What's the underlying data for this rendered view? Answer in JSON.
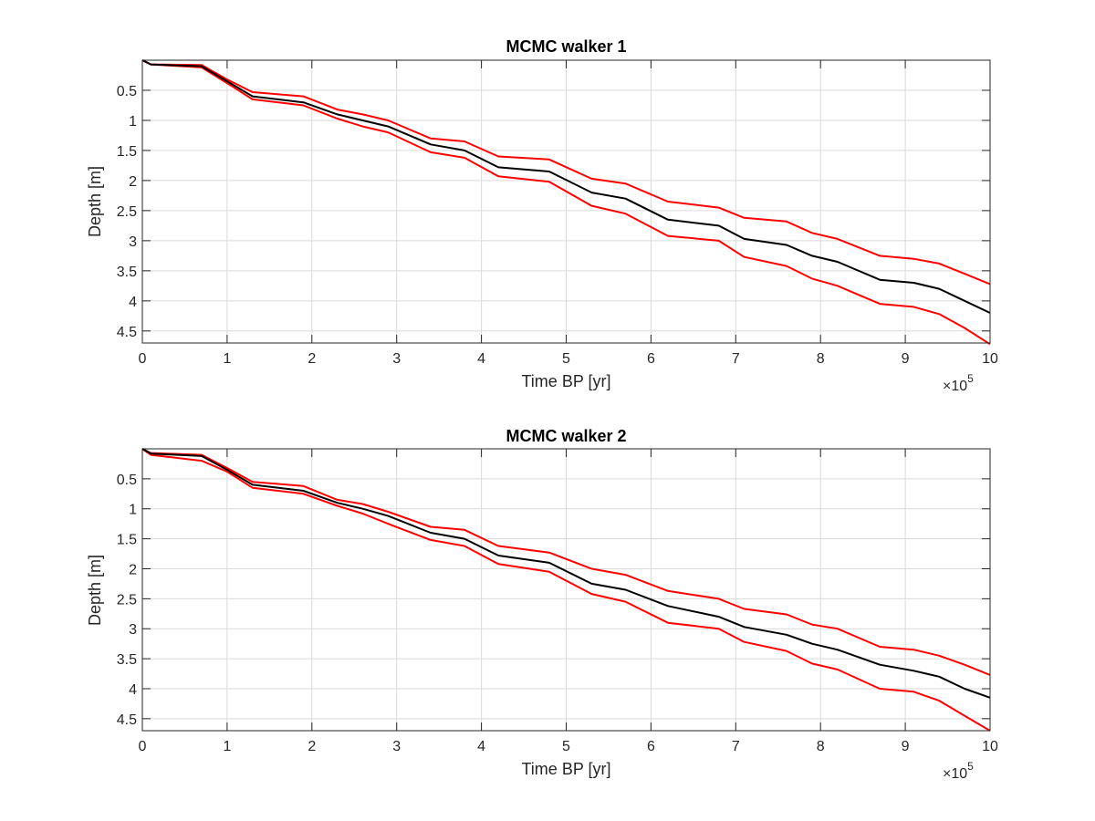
{
  "chart_data": [
    {
      "type": "line",
      "title": "MCMC walker 1",
      "xlabel": "Time BP [yr]",
      "ylabel": "Depth [m]",
      "x_multiplier": "×10",
      "x_multiplier_exp": "5",
      "xlim": [
        0,
        10
      ],
      "ylim": [
        0,
        4.7
      ],
      "y_reversed": true,
      "grid": true,
      "xticks": [
        "0",
        "1",
        "2",
        "3",
        "4",
        "5",
        "6",
        "7",
        "8",
        "9",
        "10"
      ],
      "yticks": [
        {
          "value": 0.5,
          "label": "0.5"
        },
        {
          "value": 1,
          "label": "1"
        },
        {
          "value": 1.5,
          "label": "1.5"
        },
        {
          "value": 2,
          "label": "2"
        },
        {
          "value": 2.5,
          "label": "2.5"
        },
        {
          "value": 3,
          "label": "3"
        },
        {
          "value": 3.5,
          "label": "3.5"
        },
        {
          "value": 4,
          "label": "4"
        },
        {
          "value": 4.5,
          "label": "4.5"
        }
      ],
      "series": [
        {
          "color": "#000000",
          "x": [
            0,
            0.1,
            0.7,
            1,
            1.3,
            1.9,
            2.3,
            2.6,
            2.9,
            3.4,
            3.8,
            4.2,
            4.8,
            5.3,
            5.7,
            6.2,
            6.8,
            7.1,
            7.6,
            7.9,
            8.2,
            8.7,
            9.1,
            9.4,
            9.7,
            10
          ],
          "y": [
            0,
            0.07,
            0.1,
            0.35,
            0.6,
            0.7,
            0.9,
            1.0,
            1.1,
            1.4,
            1.5,
            1.78,
            1.85,
            2.2,
            2.3,
            2.65,
            2.75,
            2.97,
            3.07,
            3.25,
            3.35,
            3.65,
            3.7,
            3.8,
            4.0,
            4.2
          ]
        },
        {
          "color": "#ff0000",
          "x": [
            0,
            0.1,
            0.7,
            1,
            1.3,
            1.9,
            2.3,
            2.6,
            2.9,
            3.4,
            3.8,
            4.2,
            4.8,
            5.3,
            5.7,
            6.2,
            6.8,
            7.1,
            7.6,
            7.9,
            8.2,
            8.7,
            9.1,
            9.4,
            9.7,
            10
          ],
          "y": [
            0,
            0.07,
            0.08,
            0.32,
            0.53,
            0.6,
            0.82,
            0.9,
            1.0,
            1.3,
            1.35,
            1.6,
            1.65,
            1.97,
            2.05,
            2.35,
            2.45,
            2.62,
            2.68,
            2.87,
            2.97,
            3.25,
            3.3,
            3.38,
            3.55,
            3.72
          ]
        },
        {
          "color": "#ff0000",
          "x": [
            0,
            0.1,
            0.7,
            1,
            1.3,
            1.9,
            2.3,
            2.6,
            2.9,
            3.4,
            3.8,
            4.2,
            4.8,
            5.3,
            5.7,
            6.2,
            6.8,
            7.1,
            7.6,
            7.9,
            8.2,
            8.7,
            9.1,
            9.4,
            9.7,
            10
          ],
          "y": [
            0,
            0.07,
            0.12,
            0.38,
            0.65,
            0.75,
            0.97,
            1.1,
            1.2,
            1.53,
            1.62,
            1.93,
            2.02,
            2.42,
            2.55,
            2.92,
            3.0,
            3.27,
            3.42,
            3.63,
            3.75,
            4.05,
            4.1,
            4.22,
            4.45,
            4.72
          ]
        }
      ]
    },
    {
      "type": "line",
      "title": "MCMC walker 2",
      "xlabel": "Time BP [yr]",
      "ylabel": "Depth [m]",
      "x_multiplier": "×10",
      "x_multiplier_exp": "5",
      "xlim": [
        0,
        10
      ],
      "ylim": [
        0,
        4.7
      ],
      "y_reversed": true,
      "grid": true,
      "xticks": [
        "0",
        "1",
        "2",
        "3",
        "4",
        "5",
        "6",
        "7",
        "8",
        "9",
        "10"
      ],
      "yticks": [
        {
          "value": 0.5,
          "label": "0.5"
        },
        {
          "value": 1,
          "label": "1"
        },
        {
          "value": 1.5,
          "label": "1.5"
        },
        {
          "value": 2,
          "label": "2"
        },
        {
          "value": 2.5,
          "label": "2.5"
        },
        {
          "value": 3,
          "label": "3"
        },
        {
          "value": 3.5,
          "label": "3.5"
        },
        {
          "value": 4,
          "label": "4"
        },
        {
          "value": 4.5,
          "label": "4.5"
        }
      ],
      "series": [
        {
          "color": "#000000",
          "x": [
            0,
            0.1,
            0.7,
            1,
            1.3,
            1.9,
            2.3,
            2.6,
            2.9,
            3.4,
            3.8,
            4.2,
            4.8,
            5.3,
            5.7,
            6.2,
            6.8,
            7.1,
            7.6,
            7.9,
            8.2,
            8.7,
            9.1,
            9.4,
            9.7,
            10
          ],
          "y": [
            0,
            0.08,
            0.12,
            0.35,
            0.6,
            0.7,
            0.9,
            1.0,
            1.12,
            1.4,
            1.5,
            1.78,
            1.9,
            2.25,
            2.35,
            2.62,
            2.8,
            2.97,
            3.1,
            3.25,
            3.35,
            3.6,
            3.7,
            3.8,
            4.0,
            4.15
          ]
        },
        {
          "color": "#ff0000",
          "x": [
            0,
            0.1,
            0.7,
            1,
            1.3,
            1.9,
            2.3,
            2.6,
            2.9,
            3.4,
            3.8,
            4.2,
            4.8,
            5.3,
            5.7,
            6.2,
            6.8,
            7.1,
            7.6,
            7.9,
            8.2,
            8.7,
            9.1,
            9.4,
            9.7,
            10
          ],
          "y": [
            0,
            0.07,
            0.1,
            0.32,
            0.55,
            0.62,
            0.85,
            0.92,
            1.05,
            1.3,
            1.35,
            1.62,
            1.73,
            2.0,
            2.1,
            2.37,
            2.5,
            2.67,
            2.76,
            2.93,
            3.0,
            3.3,
            3.35,
            3.45,
            3.6,
            3.77
          ]
        },
        {
          "color": "#ff0000",
          "x": [
            0,
            0.1,
            0.7,
            1,
            1.3,
            1.9,
            2.3,
            2.6,
            2.9,
            3.4,
            3.8,
            4.2,
            4.8,
            5.3,
            5.7,
            6.2,
            6.8,
            7.1,
            7.6,
            7.9,
            8.2,
            8.7,
            9.1,
            9.4,
            9.7,
            10
          ],
          "y": [
            0,
            0.1,
            0.2,
            0.38,
            0.65,
            0.75,
            0.95,
            1.08,
            1.25,
            1.52,
            1.62,
            1.92,
            2.05,
            2.42,
            2.55,
            2.9,
            3.0,
            3.22,
            3.37,
            3.58,
            3.68,
            4.0,
            4.05,
            4.2,
            4.45,
            4.7
          ]
        }
      ]
    }
  ]
}
